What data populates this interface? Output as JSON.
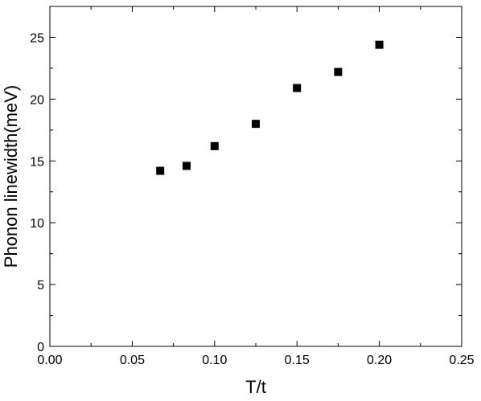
{
  "chart_data": {
    "type": "scatter",
    "title": "",
    "xlabel": "T/t",
    "ylabel": "Phonon linewidth(meV)",
    "xlim": [
      0,
      0.25
    ],
    "ylim": [
      0,
      27.5
    ],
    "x_ticks": [
      0,
      0.05,
      0.1,
      0.15,
      0.2,
      0.25
    ],
    "x_tick_labels": [
      "0.00",
      "0.05",
      "0.10",
      "0.15",
      "0.20",
      "0.25"
    ],
    "y_ticks": [
      0,
      5,
      10,
      15,
      20,
      25
    ],
    "y_tick_labels": [
      "0",
      "5",
      "10",
      "15",
      "20",
      "25"
    ],
    "grid": false,
    "legend": "none",
    "marker": "square",
    "marker_color": "#000000",
    "series": [
      {
        "x": [
          0.067,
          0.083,
          0.1,
          0.125,
          0.15,
          0.175,
          0.2
        ],
        "y": [
          14.2,
          14.6,
          16.2,
          18.0,
          20.9,
          22.2,
          24.4
        ]
      }
    ]
  }
}
